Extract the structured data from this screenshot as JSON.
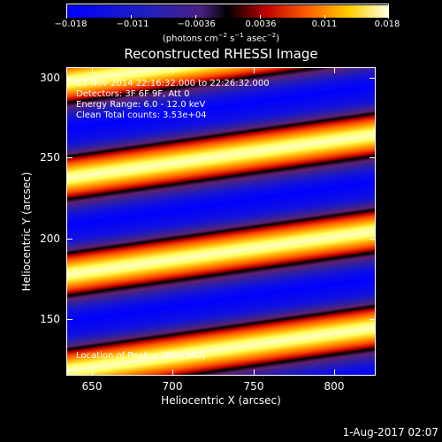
{
  "colorbar": {
    "ticks": [
      "−0.018",
      "−0.011",
      "−0.0036",
      "0.0036",
      "0.011",
      "0.018"
    ],
    "units_prefix": "(photons cm",
    "units_exp1": "−2",
    "units_mid": " s",
    "units_exp2": "−1",
    "units_mid2": " asec",
    "units_exp3": "−2",
    "units_suffix": ")"
  },
  "title": "Reconstructed RHESSI Image",
  "annotations": {
    "time": "13-Nov-2014 22:16:32.000 to 22:26:32.000",
    "detectors": "Detectors: 3F 6F 9F, Att 0",
    "energy": "Energy Range: 6.0 - 12.0 keV",
    "clean": "Clean  Total counts: 3.53e+04",
    "peak": "Location of Peak = [800,140]"
  },
  "axes": {
    "xlabel": "Heliocentric X (arcsec)",
    "ylabel": "Heliocentric Y (arcsec)",
    "xticks": [
      "650",
      "700",
      "750",
      "800"
    ],
    "yticks": [
      "300",
      "250",
      "200",
      "150"
    ]
  },
  "date": "1-Aug-2017 02:07"
}
